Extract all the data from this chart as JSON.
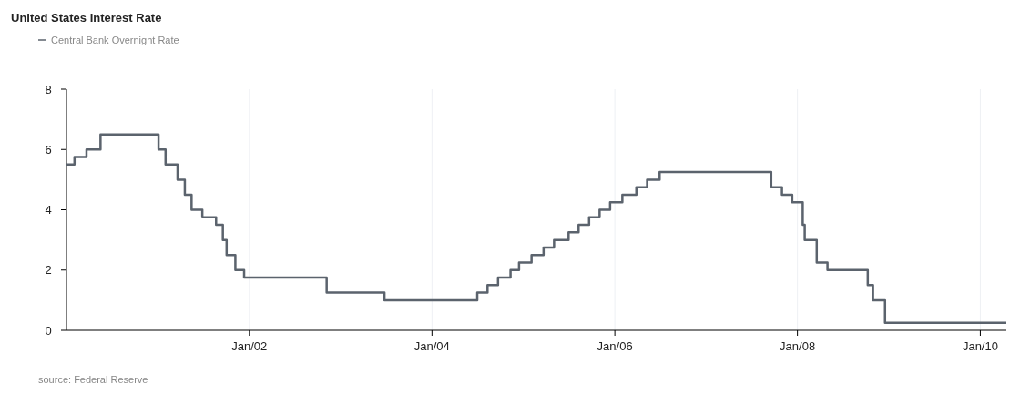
{
  "chart_data": {
    "type": "step",
    "title": "United States Interest Rate",
    "x": [
      "2000-01-01",
      "2000-02-02",
      "2000-03-21",
      "2000-05-16",
      "2001-01-03",
      "2001-01-31",
      "2001-03-20",
      "2001-04-18",
      "2001-05-15",
      "2001-06-27",
      "2001-08-21",
      "2001-09-17",
      "2001-10-02",
      "2001-11-06",
      "2001-12-11",
      "2002-11-06",
      "2003-06-25",
      "2004-06-30",
      "2004-08-10",
      "2004-09-21",
      "2004-11-10",
      "2004-12-14",
      "2005-02-02",
      "2005-03-22",
      "2005-05-03",
      "2005-06-30",
      "2005-08-09",
      "2005-09-20",
      "2005-11-01",
      "2005-12-13",
      "2006-01-31",
      "2006-03-28",
      "2006-05-10",
      "2006-06-29",
      "2007-09-18",
      "2007-10-31",
      "2007-12-11",
      "2008-01-22",
      "2008-01-30",
      "2008-03-18",
      "2008-04-30",
      "2008-10-08",
      "2008-10-29",
      "2008-12-16",
      "2010-04-15"
    ],
    "series": [
      {
        "name": "Central Bank Overnight Rate",
        "color": "#5b636d",
        "values": [
          5.5,
          5.75,
          6,
          6.5,
          6,
          5.5,
          5,
          4.5,
          4,
          3.75,
          3.5,
          3,
          2.5,
          2,
          1.75,
          1.25,
          1,
          1.25,
          1.5,
          1.75,
          2,
          2.25,
          2.5,
          2.75,
          3,
          3.25,
          3.5,
          3.75,
          4,
          4.25,
          4.5,
          4.75,
          5,
          5.25,
          4.75,
          4.5,
          4.25,
          3.5,
          3,
          2.25,
          2,
          1.5,
          1,
          0.25,
          0.25
        ]
      }
    ],
    "xlim": [
      "2000-01-01",
      "2010-04-15"
    ],
    "xticks": [
      {
        "value": "2002-01-01",
        "label": "Jan/02"
      },
      {
        "value": "2004-01-01",
        "label": "Jan/04"
      },
      {
        "value": "2006-01-01",
        "label": "Jan/06"
      },
      {
        "value": "2008-01-01",
        "label": "Jan/08"
      },
      {
        "value": "2010-01-01",
        "label": "Jan/10"
      }
    ],
    "ylim": [
      0,
      8
    ],
    "yticks": [
      0,
      2,
      4,
      6,
      8
    ],
    "grid": "x",
    "legend": "top left",
    "line_style": "solid",
    "annotations": [
      "source: Federal Reserve"
    ]
  }
}
